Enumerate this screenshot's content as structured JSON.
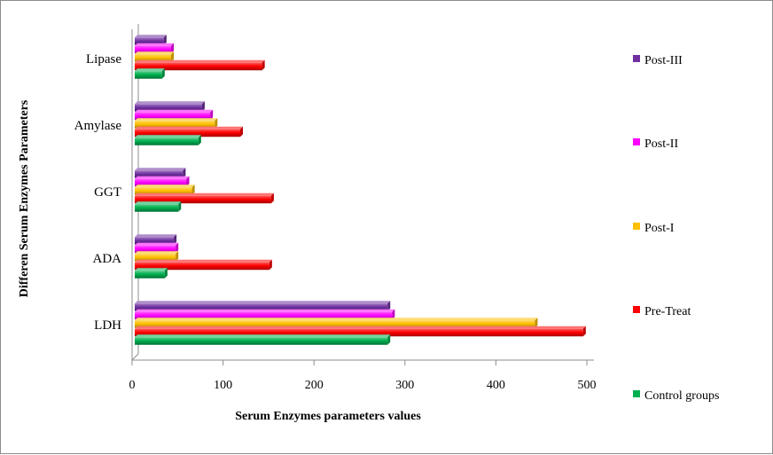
{
  "chart_data": {
    "type": "bar",
    "orientation": "horizontal",
    "three_d": true,
    "title": "",
    "xlabel": "Serum Enzymes parameters values",
    "ylabel": "Differen Serum Enzymes Parameters",
    "categories": [
      "LDH",
      "ADA",
      "GGT",
      "Amylase",
      "Lipase"
    ],
    "xlim": [
      0,
      500
    ],
    "xticks": [
      "0",
      "100",
      "200",
      "300",
      "400",
      "500"
    ],
    "grid": false,
    "legend_position": "right",
    "series": [
      {
        "name": "Control groups",
        "color": "#00B050",
        "values": [
          278,
          33,
          48,
          70,
          30
        ]
      },
      {
        "name": "Pre-Treat",
        "color": "#FF0000",
        "values": [
          493,
          148,
          150,
          116,
          140
        ]
      },
      {
        "name": "Post-I",
        "color": "#FFC000",
        "values": [
          440,
          45,
          63,
          88,
          40
        ]
      },
      {
        "name": "Post-II",
        "color": "#FF00FF",
        "values": [
          283,
          45,
          57,
          83,
          40
        ]
      },
      {
        "name": "Post-III",
        "color": "#7030A0",
        "values": [
          278,
          43,
          53,
          74,
          32
        ]
      }
    ]
  }
}
